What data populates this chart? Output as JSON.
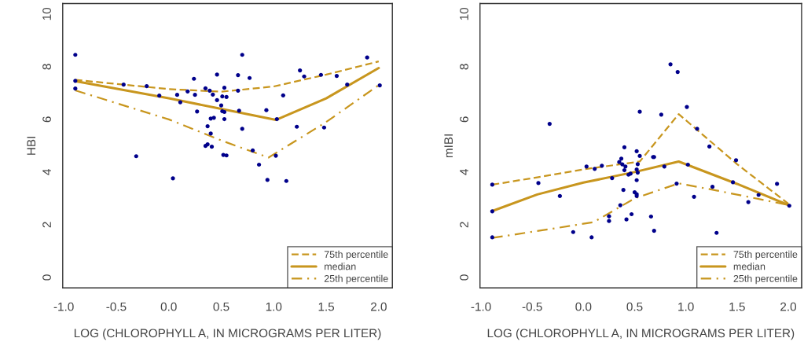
{
  "chart_data": [
    {
      "type": "scatter",
      "xlabel": "LOG (CHLOROPHYLL A, IN MICROGRAMS PER LITER)",
      "ylabel": "HBI",
      "xlim": [
        -1.01,
        2.13
      ],
      "ylim": [
        -0.4,
        10.4
      ],
      "xticks": [
        {
          "value": -1,
          "label": "-1.0"
        },
        {
          "value": -0.5,
          "label": "-0.5"
        },
        {
          "value": 0,
          "label": "0.0"
        },
        {
          "value": 0.5,
          "label": "0.5"
        },
        {
          "value": 1,
          "label": "1.0"
        },
        {
          "value": 1.5,
          "label": "1.5"
        },
        {
          "value": 2,
          "label": "2.0"
        }
      ],
      "yticks": [
        0,
        2,
        4,
        6,
        8,
        10
      ],
      "grid": false,
      "legend": "bottom right",
      "series": [
        {
          "type": "scatter",
          "color": "#00008b",
          "marker": "circle",
          "x": [
            -0.89,
            -0.89,
            -0.89,
            -0.43,
            -0.31,
            -0.21,
            -0.09,
            0.04,
            0.08,
            0.11,
            0.18,
            0.24,
            0.25,
            0.27,
            0.35,
            0.37,
            0.35,
            0.37,
            0.39,
            0.4,
            0.4,
            0.41,
            0.42,
            0.43,
            0.46,
            0.46,
            0.5,
            0.51,
            0.51,
            0.53,
            0.53,
            0.53,
            0.52,
            0.55,
            0.55,
            0.66,
            0.66,
            0.67,
            0.7,
            0.7,
            0.77,
            0.8,
            0.86,
            0.93,
            0.94,
            1.03,
            1.02,
            1.09,
            1.12,
            1.22,
            1.25,
            1.29,
            1.45,
            1.48,
            1.6,
            1.7,
            1.89,
            2.01
          ],
          "values": [
            8.45,
            7.46,
            7.17,
            7.32,
            4.6,
            7.26,
            6.9,
            3.76,
            6.93,
            6.65,
            7.06,
            7.54,
            6.93,
            6.3,
            7.18,
            5.74,
            4.99,
            5.05,
            7.09,
            5.46,
            6.03,
            4.96,
            6.94,
            6.06,
            7.7,
            6.73,
            6.53,
            6.87,
            6.31,
            7.2,
            6.28,
            6.01,
            4.65,
            4.63,
            6.85,
            7.68,
            7.09,
            6.33,
            8.45,
            5.64,
            7.57,
            4.82,
            4.28,
            6.35,
            3.7,
            6.01,
            4.62,
            6.91,
            3.66,
            5.72,
            7.86,
            7.63,
            7.69,
            5.69,
            7.65,
            7.32,
            8.35,
            7.29
          ]
        },
        {
          "type": "line",
          "name": "75th percentile",
          "color": "#c8961e",
          "line_style": "dashed",
          "x": [
            -0.89,
            0.0,
            0.5,
            1.0,
            1.5,
            2.0
          ],
          "values": [
            7.5,
            7.15,
            7.05,
            7.25,
            7.7,
            8.2
          ]
        },
        {
          "type": "line",
          "name": "median",
          "color": "#c8961e",
          "line_style": "solid",
          "x": [
            -0.89,
            0.0,
            0.5,
            1.02,
            1.5,
            2.0
          ],
          "values": [
            7.45,
            6.8,
            6.4,
            5.98,
            6.8,
            7.95
          ]
        },
        {
          "type": "line",
          "name": "25th percentile",
          "color": "#c8961e",
          "line_style": "dashdot",
          "x": [
            -0.89,
            0.0,
            0.5,
            0.95,
            1.5,
            2.0
          ],
          "values": [
            7.1,
            6.0,
            5.2,
            4.55,
            5.9,
            7.3
          ]
        }
      ]
    },
    {
      "type": "scatter",
      "xlabel": "LOG (CHLOROPHYLL A, IN MICROGRAMS PER LITER)",
      "ylabel": "mIBI",
      "xlim": [
        -1.01,
        2.13
      ],
      "ylim": [
        -0.4,
        10.4
      ],
      "xticks": [
        {
          "value": -1,
          "label": "-1.0"
        },
        {
          "value": -0.5,
          "label": "-0.5"
        },
        {
          "value": 0,
          "label": "0.0"
        },
        {
          "value": 0.5,
          "label": "0.5"
        },
        {
          "value": 1,
          "label": "1.0"
        },
        {
          "value": 1.5,
          "label": "1.5"
        },
        {
          "value": 2,
          "label": "2.0"
        }
      ],
      "yticks": [
        0,
        2,
        4,
        6,
        8,
        10
      ],
      "grid": false,
      "legend": "bottom right",
      "series": [
        {
          "type": "scatter",
          "color": "#00008b",
          "marker": "circle",
          "x": [
            -0.89,
            -0.89,
            -0.89,
            -0.44,
            -0.33,
            -0.23,
            -0.1,
            0.03,
            0.08,
            0.11,
            0.18,
            0.25,
            0.25,
            0.28,
            0.35,
            0.36,
            0.37,
            0.38,
            0.4,
            0.39,
            0.4,
            0.41,
            0.42,
            0.44,
            0.46,
            0.47,
            0.5,
            0.52,
            0.52,
            0.52,
            0.52,
            0.52,
            0.53,
            0.53,
            0.55,
            0.55,
            0.66,
            0.68,
            0.69,
            0.69,
            0.76,
            0.79,
            0.85,
            0.92,
            0.91,
            1.01,
            1.02,
            1.08,
            1.11,
            1.23,
            1.26,
            1.3,
            1.46,
            1.49,
            1.61,
            1.71,
            1.89,
            2.01
          ],
          "values": [
            3.52,
            2.51,
            1.52,
            3.58,
            5.83,
            3.09,
            1.72,
            4.21,
            1.52,
            4.12,
            4.24,
            2.32,
            2.14,
            3.77,
            4.38,
            2.74,
            4.51,
            4.29,
            4.94,
            3.32,
            4.07,
            4.21,
            2.2,
            3.9,
            3.94,
            2.4,
            3.23,
            4.1,
            4.79,
            3.69,
            3.16,
            3.09,
            4.3,
            3.98,
            4.61,
            6.29,
            2.31,
            4.57,
            4.57,
            1.77,
            6.18,
            4.21,
            8.09,
            7.8,
            3.56,
            6.47,
            4.28,
            3.06,
            5.64,
            4.97,
            3.44,
            1.69,
            3.61,
            4.45,
            2.86,
            3.13,
            3.55,
            2.72
          ]
        },
        {
          "type": "line",
          "name": "75th percentile",
          "color": "#c8961e",
          "line_style": "dashed",
          "x": [
            -0.89,
            -0.45,
            0.0,
            0.55,
            0.93,
            1.5,
            2.0
          ],
          "values": [
            3.52,
            3.8,
            4.1,
            4.4,
            6.2,
            4.3,
            2.8
          ]
        },
        {
          "type": "line",
          "name": "median",
          "color": "#c8961e",
          "line_style": "solid",
          "x": [
            -0.89,
            -0.45,
            0.0,
            0.5,
            0.93,
            1.5,
            2.0
          ],
          "values": [
            2.52,
            3.15,
            3.6,
            4.0,
            4.4,
            3.55,
            2.75
          ]
        },
        {
          "type": "line",
          "name": "25th percentile",
          "color": "#c8961e",
          "line_style": "dashdot",
          "x": [
            -0.89,
            -0.3,
            0.1,
            0.5,
            0.93,
            1.3,
            2.0
          ],
          "values": [
            1.5,
            1.85,
            2.1,
            3.0,
            3.57,
            3.3,
            2.75
          ]
        }
      ]
    }
  ]
}
